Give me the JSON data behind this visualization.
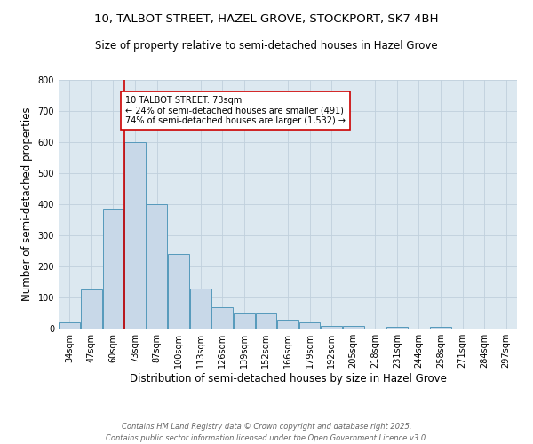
{
  "title_line1": "10, TALBOT STREET, HAZEL GROVE, STOCKPORT, SK7 4BH",
  "title_line2": "Size of property relative to semi-detached houses in Hazel Grove",
  "xlabel": "Distribution of semi-detached houses by size in Hazel Grove",
  "ylabel": "Number of semi-detached properties",
  "categories": [
    "34sqm",
    "47sqm",
    "60sqm",
    "73sqm",
    "87sqm",
    "100sqm",
    "113sqm",
    "126sqm",
    "139sqm",
    "152sqm",
    "166sqm",
    "179sqm",
    "192sqm",
    "205sqm",
    "218sqm",
    "231sqm",
    "244sqm",
    "258sqm",
    "271sqm",
    "284sqm",
    "297sqm"
  ],
  "values": [
    20,
    125,
    385,
    600,
    400,
    240,
    130,
    70,
    50,
    50,
    30,
    20,
    8,
    8,
    0,
    5,
    0,
    5,
    0,
    0,
    0
  ],
  "bar_color": "#c8d8e8",
  "bar_edge_color": "#5599bb",
  "red_line_x": 3,
  "annotation_text": "10 TALBOT STREET: 73sqm\n← 24% of semi-detached houses are smaller (491)\n74% of semi-detached houses are larger (1,532) →",
  "annotation_box_color": "#ffffff",
  "annotation_box_edge_color": "#cc0000",
  "ylim": [
    0,
    800
  ],
  "yticks": [
    0,
    100,
    200,
    300,
    400,
    500,
    600,
    700,
    800
  ],
  "grid_color": "#c8d8e8",
  "background_color": "#dce8f0",
  "footer_line1": "Contains HM Land Registry data © Crown copyright and database right 2025.",
  "footer_line2": "Contains public sector information licensed under the Open Government Licence v3.0.",
  "title_fontsize": 9.5,
  "subtitle_fontsize": 8.5,
  "axis_label_fontsize": 8.5,
  "tick_fontsize": 7,
  "annotation_fontsize": 7,
  "footer_fontsize": 6
}
